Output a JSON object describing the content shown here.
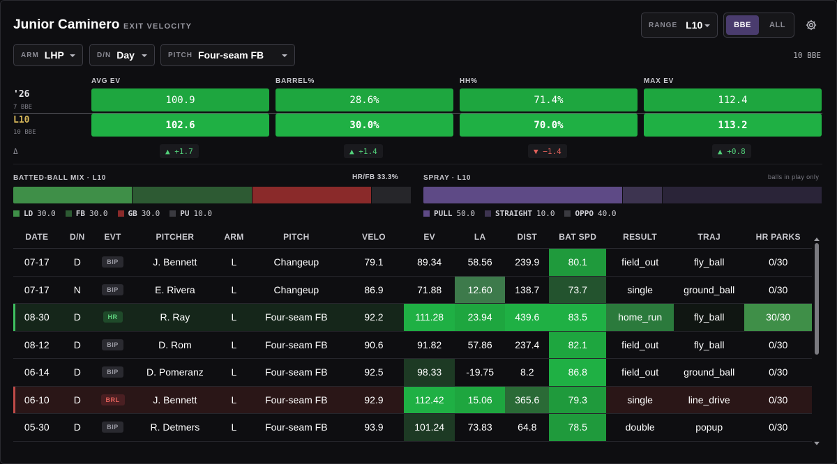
{
  "header": {
    "title": "Junior Caminero",
    "subtitle": "EXIT VELOCITY"
  },
  "range": {
    "label": "RANGE",
    "value": "L10"
  },
  "toggle": {
    "bbe": "BBE",
    "all": "ALL",
    "active": "BBE"
  },
  "filters": [
    {
      "label": "ARM",
      "value": "LHP"
    },
    {
      "label": "D/N",
      "value": "Day"
    },
    {
      "label": "PITCH",
      "value": "Four-seam FB"
    }
  ],
  "bbe_count": "10 BBE",
  "metrics": {
    "row_labels": {
      "season": "'26",
      "season_sub": "7 BBE",
      "recent": "L10",
      "recent_sub": "10 BBE",
      "delta": "Δ"
    },
    "columns": [
      {
        "name": "AVG EV",
        "season": "100.9",
        "recent": "102.6",
        "delta": "▲ +1.7",
        "dir": "up"
      },
      {
        "name": "BARREL%",
        "season": "28.6%",
        "recent": "30.0%",
        "delta": "▲ +1.4",
        "dir": "up"
      },
      {
        "name": "HH%",
        "season": "71.4%",
        "recent": "70.0%",
        "delta": "▼ −1.4",
        "dir": "down"
      },
      {
        "name": "MAX EV",
        "season": "112.4",
        "recent": "113.2",
        "delta": "▲ +0.8",
        "dir": "up"
      }
    ]
  },
  "batted_ball": {
    "title": "BATTED-BALL MIX · L10",
    "right": "HR/FB 33.3%",
    "segments": [
      {
        "code": "LD",
        "value": "30.0",
        "pct": 30,
        "color": "#3f8f48"
      },
      {
        "code": "FB",
        "value": "30.0",
        "pct": 30,
        "color": "#2d5a33"
      },
      {
        "code": "GB",
        "value": "30.0",
        "pct": 30,
        "color": "#8a2a2a"
      },
      {
        "code": "PU",
        "value": "10.0",
        "pct": 10,
        "color": "#26262a"
      }
    ]
  },
  "spray": {
    "title": "SPRAY · L10",
    "right": "balls in play only",
    "segments": [
      {
        "code": "PULL",
        "value": "50.0",
        "pct": 50,
        "color": "#5e4a86"
      },
      {
        "code": "STRAIGHT",
        "value": "10.0",
        "pct": 10,
        "color": "#3d3450"
      },
      {
        "code": "OPPO",
        "value": "40.0",
        "pct": 40,
        "color": "#2a2438"
      }
    ]
  },
  "table": {
    "columns": [
      "DATE",
      "D/N",
      "EVT",
      "PITCHER",
      "ARM",
      "PITCH",
      "VELO",
      "EV",
      "LA",
      "DIST",
      "BAT SPD",
      "RESULT",
      "TRAJ",
      "HR PARKS"
    ],
    "rows": [
      {
        "date": "07-17",
        "dn": "D",
        "evt": "BIP",
        "pitcher": "J. Bennett",
        "arm": "L",
        "pitch": "Changeup",
        "velo": "79.1",
        "ev": "89.34",
        "la": "58.56",
        "dist": "239.9",
        "batspd": "80.1",
        "result": "field_out",
        "traj": "fly_ball",
        "hrparks": "0/30",
        "shade": {
          "ev": "",
          "la": "",
          "dist": "",
          "batspd": "#1f9a3c",
          "result": "",
          "traj": "",
          "hrparks": ""
        }
      },
      {
        "date": "07-17",
        "dn": "N",
        "evt": "BIP",
        "pitcher": "E. Rivera",
        "arm": "L",
        "pitch": "Changeup",
        "velo": "86.9",
        "ev": "71.88",
        "la": "12.60",
        "dist": "138.7",
        "batspd": "73.7",
        "result": "single",
        "traj": "ground_ball",
        "hrparks": "0/30",
        "shade": {
          "ev": "",
          "la": "#3d7a4b",
          "dist": "",
          "batspd": "#23532e",
          "result": "",
          "traj": "",
          "hrparks": ""
        }
      },
      {
        "date": "08-30",
        "dn": "D",
        "evt": "HR",
        "pitcher": "R. Ray",
        "arm": "L",
        "pitch": "Four-seam FB",
        "velo": "92.2",
        "ev": "111.28",
        "la": "23.94",
        "dist": "439.6",
        "batspd": "83.5",
        "result": "home_run",
        "traj": "fly_ball",
        "hrparks": "30/30",
        "shade": {
          "ev": "#1fb044",
          "la": "#1ea63f",
          "dist": "#1fb044",
          "batspd": "#1fb044",
          "result": "#2b7a3c",
          "traj": "#101612",
          "hrparks": "#3f8f48"
        }
      },
      {
        "date": "08-12",
        "dn": "D",
        "evt": "BIP",
        "pitcher": "D. Rom",
        "arm": "L",
        "pitch": "Four-seam FB",
        "velo": "90.6",
        "ev": "91.82",
        "la": "57.86",
        "dist": "237.4",
        "batspd": "82.1",
        "result": "field_out",
        "traj": "fly_ball",
        "hrparks": "0/30",
        "shade": {
          "ev": "",
          "la": "",
          "dist": "",
          "batspd": "#1ea63f",
          "result": "",
          "traj": "",
          "hrparks": ""
        }
      },
      {
        "date": "06-14",
        "dn": "D",
        "evt": "BIP",
        "pitcher": "D. Pomeranz",
        "arm": "L",
        "pitch": "Four-seam FB",
        "velo": "92.5",
        "ev": "98.33",
        "la": "-19.75",
        "dist": "8.2",
        "batspd": "86.8",
        "result": "field_out",
        "traj": "ground_ball",
        "hrparks": "0/30",
        "shade": {
          "ev": "#1d3a24",
          "la": "",
          "dist": "",
          "batspd": "#1fb044",
          "result": "",
          "traj": "",
          "hrparks": ""
        }
      },
      {
        "date": "06-10",
        "dn": "D",
        "evt": "BRL",
        "pitcher": "J. Bennett",
        "arm": "L",
        "pitch": "Four-seam FB",
        "velo": "92.9",
        "ev": "112.42",
        "la": "15.06",
        "dist": "365.6",
        "batspd": "79.3",
        "result": "single",
        "traj": "line_drive",
        "hrparks": "0/30",
        "shade": {
          "ev": "#1fb044",
          "la": "#1ea63f",
          "dist": "#2a6a36",
          "batspd": "#1f9a3c",
          "result": "",
          "traj": "",
          "hrparks": ""
        }
      },
      {
        "date": "05-30",
        "dn": "D",
        "evt": "BIP",
        "pitcher": "R. Detmers",
        "arm": "L",
        "pitch": "Four-seam FB",
        "velo": "93.9",
        "ev": "101.24",
        "la": "73.83",
        "dist": "64.8",
        "batspd": "78.5",
        "result": "double",
        "traj": "popup",
        "hrparks": "0/30",
        "shade": {
          "ev": "#1d3a24",
          "la": "",
          "dist": "",
          "batspd": "#1f9a3c",
          "result": "",
          "traj": "",
          "hrparks": ""
        }
      }
    ]
  },
  "colors": {
    "accent": "#4a3c6e",
    "good": "#1fb044",
    "bad": "#e0605a",
    "gold": "#d7b85a"
  }
}
